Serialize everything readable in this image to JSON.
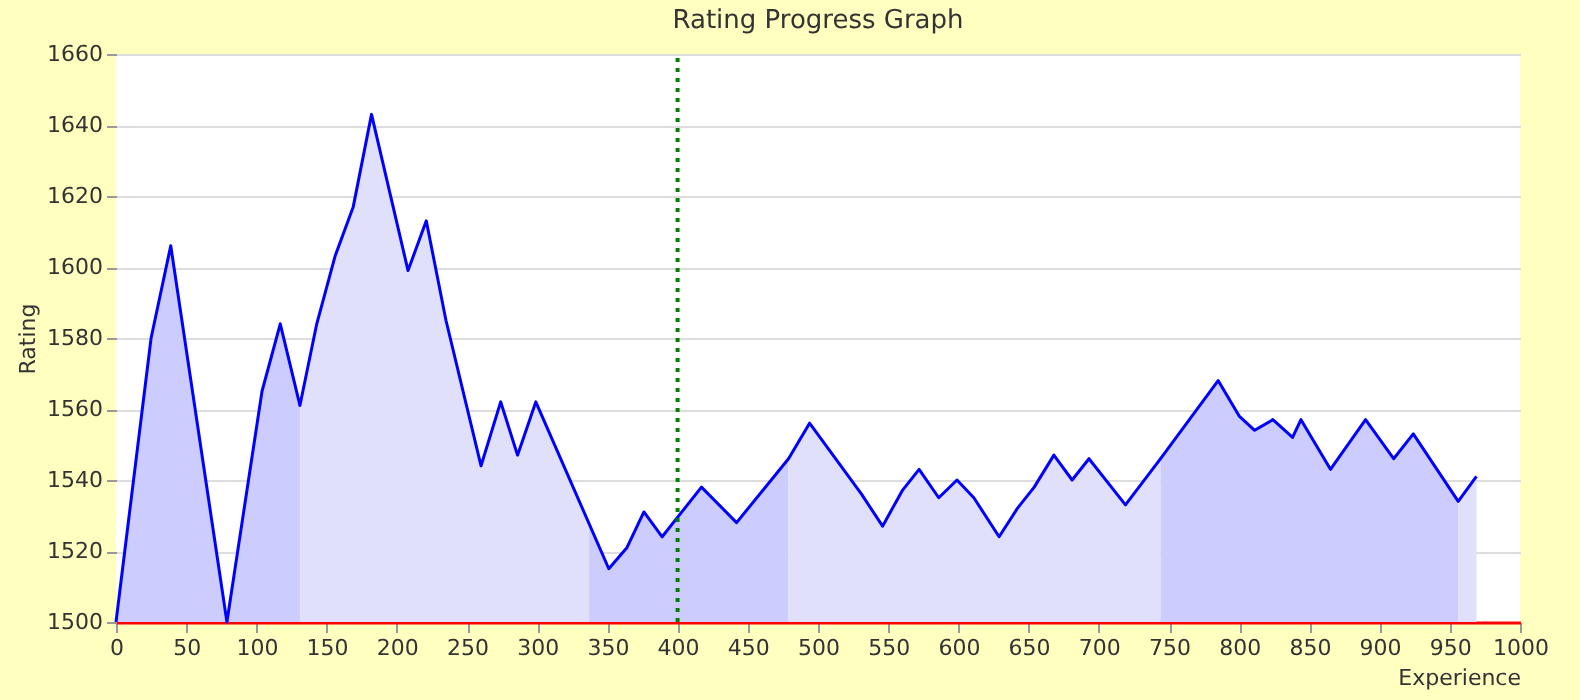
{
  "chart_data": {
    "type": "line",
    "title": "Rating Progress Graph",
    "xlabel": "Experience",
    "ylabel": "Rating",
    "xlim": [
      0,
      1000
    ],
    "xticks": [
      0,
      50,
      100,
      150,
      200,
      250,
      300,
      350,
      400,
      450,
      500,
      550,
      600,
      650,
      700,
      750,
      800,
      850,
      900,
      950,
      1000
    ],
    "ylim": [
      1500,
      1660
    ],
    "yticks": [
      1500,
      1520,
      1540,
      1560,
      1580,
      1600,
      1620,
      1640,
      1660
    ],
    "grid": "y",
    "marker": "none",
    "line_style": "solid",
    "series": [
      {
        "type": "area",
        "color": "#ccccff",
        "x": [
          0,
          25,
          39,
          79,
          104,
          117,
          131
        ],
        "values": [
          1500,
          1580,
          1606,
          1500,
          1565,
          1584,
          1561
        ]
      },
      {
        "type": "area",
        "color": "#e0e0fa",
        "x": [
          131,
          143,
          156,
          169,
          182,
          208,
          221,
          235,
          260,
          274,
          286,
          299,
          337
        ],
        "values": [
          1561,
          1584,
          1603,
          1617,
          1643,
          1599,
          1613,
          1585,
          1544,
          1562,
          1547,
          1562,
          1528
        ]
      },
      {
        "type": "area",
        "color": "#ccccff",
        "x": [
          337,
          351,
          364,
          376,
          389,
          417,
          442,
          479
        ],
        "values": [
          1528,
          1515,
          1521,
          1531,
          1524,
          1538,
          1528,
          1546
        ]
      },
      {
        "type": "area",
        "color": "#e0e0fa",
        "x": [
          479,
          494,
          531,
          546,
          560,
          572,
          586,
          599,
          611,
          629,
          642,
          654,
          668,
          681,
          693,
          719,
          744
        ],
        "values": [
          1546,
          1556,
          1536,
          1527,
          1537,
          1543,
          1535,
          1540,
          1535,
          1524,
          1532,
          1538,
          1547,
          1540,
          1546,
          1533,
          1546
        ]
      },
      {
        "type": "area",
        "color": "#ccccff",
        "x": [
          744,
          785,
          800,
          811,
          824,
          838,
          844,
          865,
          890,
          910,
          924,
          956
        ],
        "values": [
          1546,
          1568,
          1558,
          1554,
          1557,
          1552,
          1557,
          1543,
          1557,
          1546,
          1553,
          1534
        ]
      },
      {
        "type": "area",
        "color": "#e0e0fa",
        "x": [
          956,
          969
        ],
        "values": [
          1534,
          1541
        ]
      },
      {
        "color": "#0000ff",
        "x": [
          0,
          25,
          39,
          79,
          104,
          117,
          131,
          143,
          156,
          169,
          182,
          208,
          221,
          235,
          260,
          274,
          286,
          299,
          351,
          364,
          376,
          389,
          417,
          442,
          479,
          494,
          531,
          546,
          560,
          572,
          586,
          599,
          611,
          629,
          642,
          654,
          668,
          681,
          693,
          719,
          744,
          785,
          800,
          811,
          824,
          838,
          844,
          865,
          890,
          910,
          924,
          956,
          969
        ],
        "values": [
          1500,
          1580,
          1606,
          1500,
          1565,
          1584,
          1561,
          1584,
          1603,
          1617,
          1643,
          1599,
          1613,
          1585,
          1544,
          1562,
          1547,
          1562,
          1515,
          1521,
          1531,
          1524,
          1538,
          1528,
          1546,
          1556,
          1536,
          1527,
          1537,
          1543,
          1535,
          1540,
          1535,
          1524,
          1532,
          1538,
          1547,
          1540,
          1546,
          1533,
          1546,
          1568,
          1558,
          1554,
          1557,
          1552,
          1557,
          1543,
          1557,
          1546,
          1553,
          1534,
          1541
        ]
      }
    ],
    "ref_lines": [
      {
        "axis": "x",
        "value": 400,
        "color": "#008000",
        "line_style": "dotted"
      }
    ]
  }
}
